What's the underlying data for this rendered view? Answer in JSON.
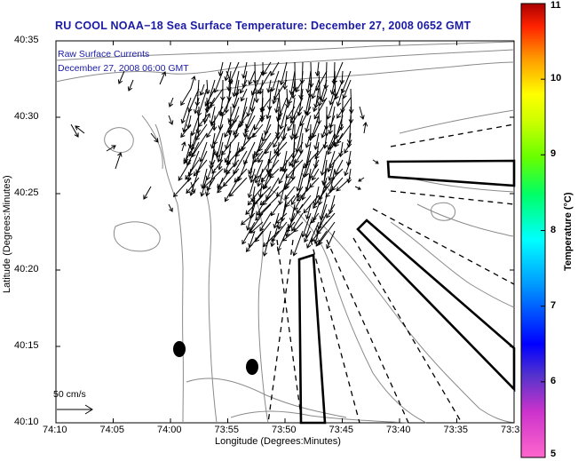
{
  "header": {
    "title": "RU COOL  NOAA−18  Sea Surface Temperature:  December 27, 2008 0652 GMT"
  },
  "overlay": {
    "line1": "Raw Surface Currents",
    "line2": "December 27, 2008 06:00 GMT"
  },
  "scale": {
    "label": "50 cm/s"
  },
  "axes": {
    "xlabel": "Longitude (Degrees:Minutes)",
    "ylabel": "Latitude (Degrees:Minutes)",
    "xticks": [
      "74:10",
      "74:05",
      "74:00",
      "73:55",
      "73:50",
      "73:45",
      "73:40",
      "73:35",
      "73:3"
    ],
    "yticks": [
      "40:35",
      "40:30",
      "40:25",
      "40:20",
      "40:15",
      "40:10"
    ]
  },
  "colorbar": {
    "label": "Temperature (°C)",
    "ticks": [
      "11",
      "10",
      "9",
      "8",
      "7",
      "6",
      "5"
    ],
    "min": 5,
    "max": 11
  },
  "colors": {
    "title": "#1a1aa6",
    "contour": "#8a8a8a",
    "vector": "#000000",
    "shipping_channel": "#000000"
  }
}
